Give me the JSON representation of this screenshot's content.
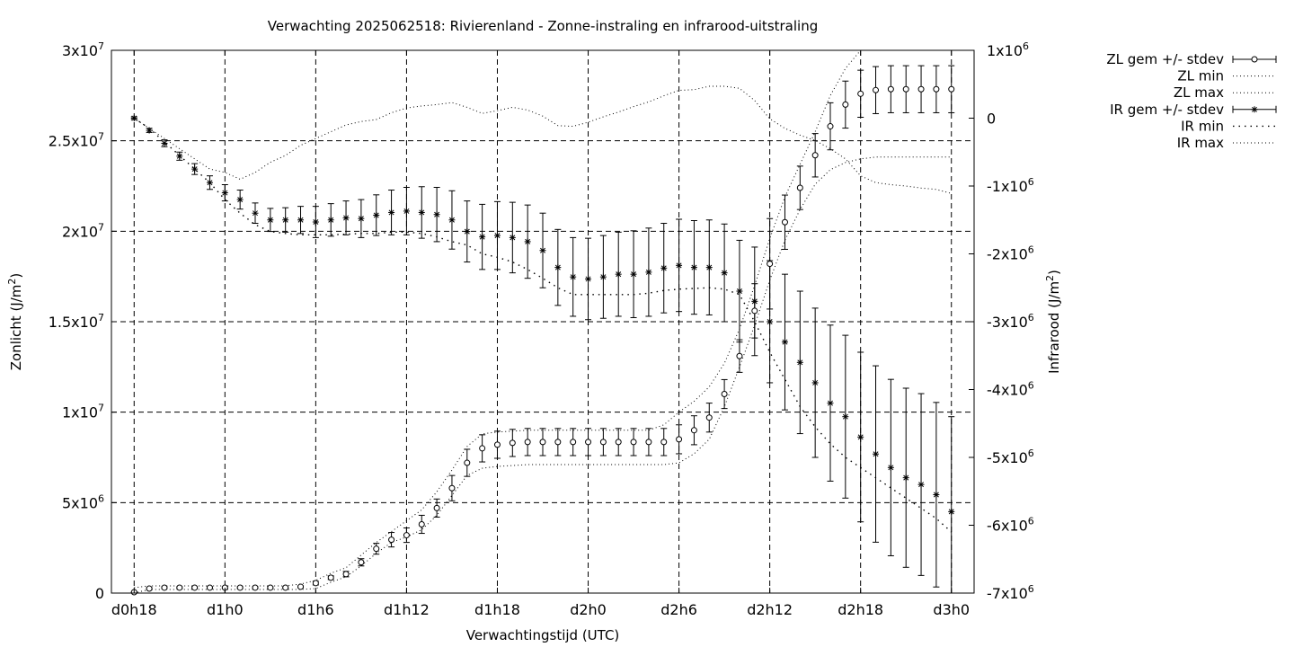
{
  "chart_data": {
    "type": "line",
    "title": "Verwachting 2025062518: Rivierenland - Zonne-instraling en infrarood-uitstraling",
    "xlabel": "Verwachtingstijd (UTC)",
    "ylabel": "Zonlicht (J/m²)",
    "y2label": "Infrarood (J/m²)",
    "ylabel_parts": {
      "pre": "Zonlicht (J/m",
      "sup": "2",
      "post": ")"
    },
    "y2label_parts": {
      "pre": "Infrarood (J/m",
      "sup": "2",
      "post": ")"
    },
    "x_unit": "hours since d0h18",
    "xlim": [
      -1.5,
      55.5
    ],
    "x_ticks": [
      {
        "x": 0,
        "label": "d0h18"
      },
      {
        "x": 6,
        "label": "d1h0"
      },
      {
        "x": 12,
        "label": "d1h6"
      },
      {
        "x": 18,
        "label": "d1h12"
      },
      {
        "x": 24,
        "label": "d1h18"
      },
      {
        "x": 30,
        "label": "d2h0"
      },
      {
        "x": 36,
        "label": "d2h6"
      },
      {
        "x": 42,
        "label": "d2h12"
      },
      {
        "x": 48,
        "label": "d2h18"
      },
      {
        "x": 54,
        "label": "d3h0"
      }
    ],
    "ylim": [
      0,
      30000000
    ],
    "y_ticks": [
      {
        "v": 0,
        "mant": "0",
        "exp": ""
      },
      {
        "v": 5000000,
        "mant": "5x10",
        "exp": "6"
      },
      {
        "v": 10000000,
        "mant": "1x10",
        "exp": "7"
      },
      {
        "v": 15000000,
        "mant": "1.5x10",
        "exp": "7"
      },
      {
        "v": 20000000,
        "mant": "2x10",
        "exp": "7"
      },
      {
        "v": 25000000,
        "mant": "2.5x10",
        "exp": "7"
      },
      {
        "v": 30000000,
        "mant": "3x10",
        "exp": "7"
      }
    ],
    "y2lim": [
      -7000000,
      1000000
    ],
    "y2_ticks": [
      {
        "v": 1000000,
        "mant": "1x10",
        "exp": "6"
      },
      {
        "v": 0,
        "mant": "0",
        "exp": ""
      },
      {
        "v": -1000000,
        "mant": "-1x10",
        "exp": "6"
      },
      {
        "v": -2000000,
        "mant": "-2x10",
        "exp": "6"
      },
      {
        "v": -3000000,
        "mant": "-3x10",
        "exp": "6"
      },
      {
        "v": -4000000,
        "mant": "-4x10",
        "exp": "6"
      },
      {
        "v": -5000000,
        "mant": "-5x10",
        "exp": "6"
      },
      {
        "v": -6000000,
        "mant": "-6x10",
        "exp": "6"
      },
      {
        "v": -7000000,
        "mant": "-7x10",
        "exp": "6"
      }
    ],
    "grid": true,
    "legend_position": "outside-top-right",
    "x": [
      0,
      1,
      2,
      3,
      4,
      5,
      6,
      7,
      8,
      9,
      10,
      11,
      12,
      13,
      14,
      15,
      16,
      17,
      18,
      19,
      20,
      21,
      22,
      23,
      24,
      25,
      26,
      27,
      28,
      29,
      30,
      31,
      32,
      33,
      34,
      35,
      36,
      37,
      38,
      39,
      40,
      41,
      42,
      43,
      44,
      45,
      46,
      47,
      48,
      49,
      50,
      51,
      52,
      53,
      54
    ],
    "series": [
      {
        "name": "ZL gem +/- stdev",
        "axis": "y",
        "style": "open-circle-errorbars",
        "values": [
          50000,
          250000,
          300000,
          300000,
          300000,
          300000,
          300000,
          300000,
          300000,
          300000,
          300000,
          350000,
          550000,
          850000,
          1050000,
          1700000,
          2450000,
          2950000,
          3200000,
          3800000,
          4700000,
          5800000,
          7200000,
          8000000,
          8200000,
          8300000,
          8350000,
          8350000,
          8350000,
          8350000,
          8350000,
          8350000,
          8350000,
          8350000,
          8350000,
          8350000,
          8500000,
          9000000,
          9700000,
          11000000,
          13100000,
          15600000,
          18200000,
          20500000,
          22400000,
          24200000,
          25800000,
          27000000,
          27600000,
          27800000,
          27850000,
          27850000,
          27850000,
          27850000,
          27850000
        ],
        "stdev": [
          10000,
          50000,
          50000,
          50000,
          50000,
          50000,
          50000,
          50000,
          50000,
          50000,
          50000,
          50000,
          100000,
          100000,
          150000,
          200000,
          300000,
          400000,
          400000,
          500000,
          500000,
          700000,
          750000,
          750000,
          750000,
          750000,
          750000,
          750000,
          750000,
          750000,
          750000,
          750000,
          750000,
          750000,
          750000,
          750000,
          800000,
          800000,
          800000,
          800000,
          900000,
          1500000,
          2500000,
          1500000,
          1200000,
          1200000,
          1300000,
          1300000,
          1300000,
          1300000,
          1300000,
          1300000,
          1300000,
          1300000,
          1300000
        ]
      },
      {
        "name": "ZL min",
        "axis": "y",
        "style": "dotted",
        "values": [
          0,
          200000,
          200000,
          200000,
          200000,
          200000,
          200000,
          200000,
          200000,
          200000,
          200000,
          200000,
          250000,
          600000,
          900000,
          1500000,
          2200000,
          2800000,
          3100000,
          3500000,
          4300000,
          5400000,
          6500000,
          6900000,
          7000000,
          7050000,
          7100000,
          7100000,
          7100000,
          7100000,
          7100000,
          7100000,
          7100000,
          7100000,
          7100000,
          7100000,
          7200000,
          7700000,
          8500000,
          10300000,
          12500000,
          14800000,
          17300000,
          19500000,
          21200000,
          22600000,
          23400000,
          23800000,
          24000000,
          24100000,
          24100000,
          24100000,
          24100000,
          24100000,
          24100000
        ]
      },
      {
        "name": "ZL max",
        "axis": "y",
        "style": "dotted",
        "values": [
          300000,
          400000,
          400000,
          400000,
          400000,
          400000,
          400000,
          400000,
          400000,
          400000,
          400000,
          500000,
          700000,
          1100000,
          1400000,
          2100000,
          2800000,
          3400000,
          4000000,
          4600000,
          5600000,
          6800000,
          8100000,
          8800000,
          8900000,
          8950000,
          9000000,
          9000000,
          9000000,
          9000000,
          9000000,
          9000000,
          9000000,
          9000000,
          9000000,
          9300000,
          10000000,
          10600000,
          11400000,
          12700000,
          14600000,
          17000000,
          19600000,
          21900000,
          23700000,
          25500000,
          27500000,
          29000000,
          30000000,
          30000000,
          30000000,
          30000000,
          30000000,
          30000000,
          30000000
        ]
      },
      {
        "name": "IR gem +/- stdev",
        "axis": "y2",
        "style": "star-errorbars",
        "values": [
          0,
          -180000,
          -370000,
          -560000,
          -750000,
          -950000,
          -1100000,
          -1200000,
          -1400000,
          -1500000,
          -1500000,
          -1500000,
          -1530000,
          -1500000,
          -1470000,
          -1480000,
          -1430000,
          -1390000,
          -1370000,
          -1390000,
          -1420000,
          -1500000,
          -1670000,
          -1750000,
          -1730000,
          -1760000,
          -1820000,
          -1950000,
          -2200000,
          -2340000,
          -2370000,
          -2340000,
          -2300000,
          -2300000,
          -2270000,
          -2210000,
          -2170000,
          -2200000,
          -2200000,
          -2280000,
          -2550000,
          -2700000,
          -3000000,
          -3300000,
          -3600000,
          -3900000,
          -4200000,
          -4400000,
          -4700000,
          -4950000,
          -5150000,
          -5300000,
          -5400000,
          -5550000,
          -5800000
        ]
      },
      {
        "name": "IR min",
        "axis": "y2",
        "style": "dotted-sparse",
        "values": [
          0,
          -150000,
          -350000,
          -550000,
          -750000,
          -950000,
          -1200000,
          -1400000,
          -1570000,
          -1670000,
          -1700000,
          -1720000,
          -1720000,
          -1720000,
          -1710000,
          -1700000,
          -1700000,
          -1680000,
          -1680000,
          -1700000,
          -1750000,
          -1820000,
          -1870000,
          -2000000,
          -2050000,
          -2120000,
          -2230000,
          -2360000,
          -2500000,
          -2600000,
          -2600000,
          -2600000,
          -2600000,
          -2600000,
          -2580000,
          -2540000,
          -2520000,
          -2510000,
          -2500000,
          -2520000,
          -2600000,
          -3000000,
          -3450000,
          -3850000,
          -4250000,
          -4550000,
          -4800000,
          -5000000,
          -5150000,
          -5300000,
          -5450000,
          -5600000,
          -5750000,
          -5900000,
          -6100000
        ]
      },
      {
        "name": "IR max",
        "axis": "y2",
        "style": "dotted",
        "values": [
          0,
          -150000,
          -300000,
          -450000,
          -600000,
          -750000,
          -800000,
          -900000,
          -800000,
          -650000,
          -550000,
          -400000,
          -300000,
          -200000,
          -100000,
          -50000,
          -20000,
          80000,
          150000,
          180000,
          200000,
          230000,
          160000,
          70000,
          110000,
          160000,
          120000,
          30000,
          -110000,
          -120000,
          -60000,
          20000,
          90000,
          170000,
          240000,
          330000,
          410000,
          420000,
          470000,
          470000,
          440000,
          260000,
          -10000,
          -150000,
          -250000,
          -330000,
          -450000,
          -600000,
          -850000,
          -950000,
          -980000,
          -1000000,
          -1030000,
          -1050000,
          -1110000
        ]
      }
    ],
    "ir_stdev": [
      20000,
      30000,
      50000,
      60000,
      80000,
      100000,
      120000,
      140000,
      150000,
      170000,
      180000,
      200000,
      230000,
      240000,
      250000,
      280000,
      300000,
      330000,
      350000,
      380000,
      400000,
      430000,
      450000,
      480000,
      500000,
      520000,
      540000,
      550000,
      560000,
      580000,
      600000,
      610000,
      620000,
      640000,
      650000,
      660000,
      680000,
      690000,
      700000,
      720000,
      750000,
      800000,
      900000,
      1000000,
      1050000,
      1100000,
      1150000,
      1200000,
      1250000,
      1300000,
      1300000,
      1320000,
      1340000,
      1360000,
      1400000
    ]
  }
}
